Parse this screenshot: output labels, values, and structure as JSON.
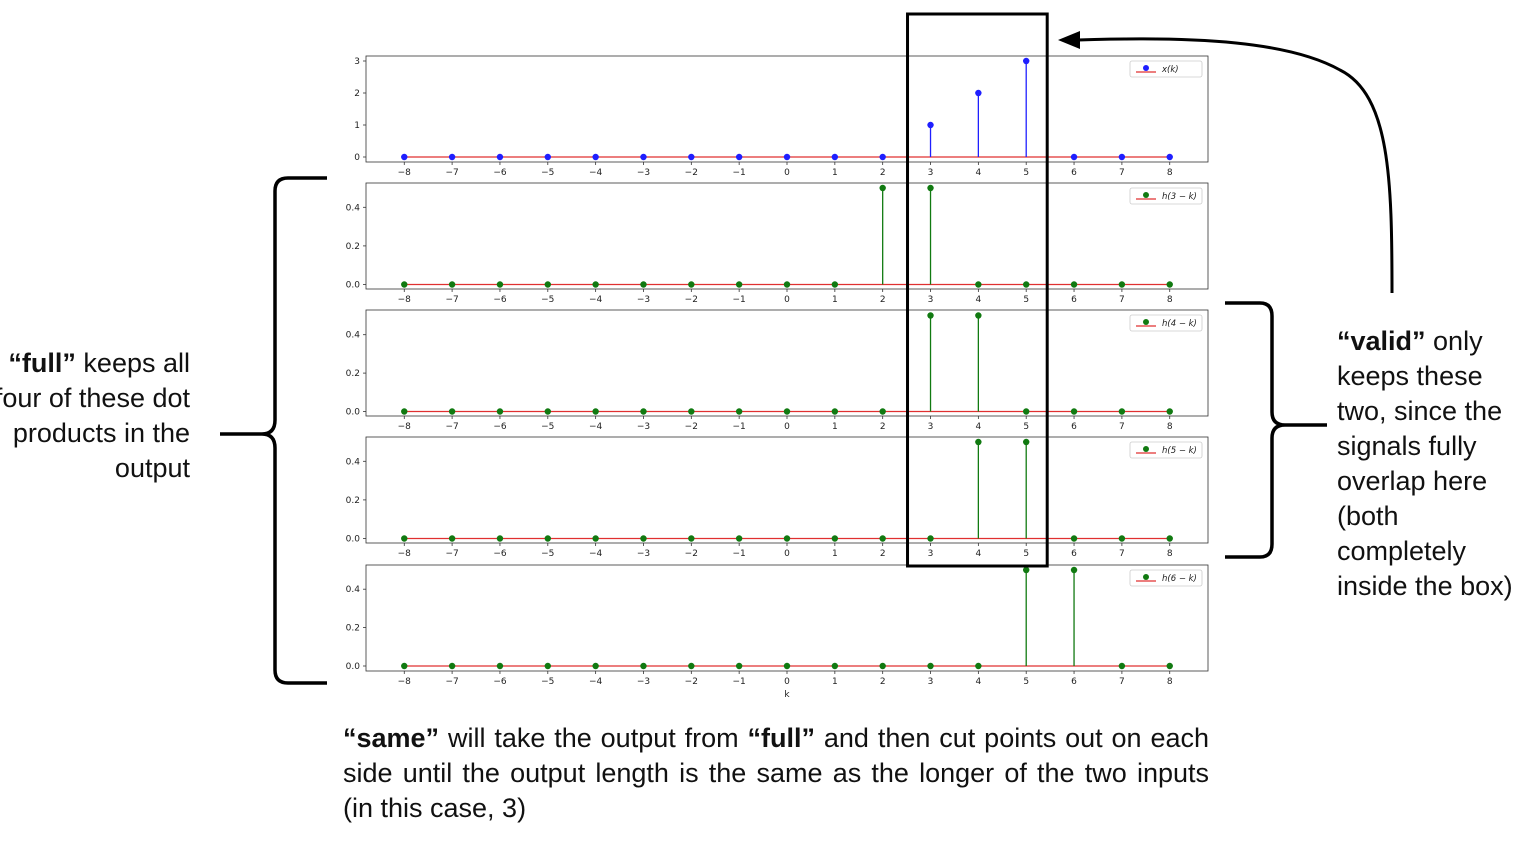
{
  "chart_data": [
    {
      "type": "stem",
      "x": [
        -8,
        -7,
        -6,
        -5,
        -4,
        -3,
        -2,
        -1,
        0,
        1,
        2,
        3,
        4,
        5,
        6,
        7,
        8
      ],
      "y": [
        0,
        0,
        0,
        0,
        0,
        0,
        0,
        0,
        0,
        0,
        0,
        1,
        2,
        3,
        0,
        0,
        0
      ],
      "legend": "x(k)",
      "legend_placement": "top-right",
      "ylim": [
        0,
        3
      ],
      "yticks": [
        "0",
        "1",
        "2",
        "3"
      ],
      "color": "#1f1fff"
    },
    {
      "type": "stem",
      "x": [
        -8,
        -7,
        -6,
        -5,
        -4,
        -3,
        -2,
        -1,
        0,
        1,
        2,
        3,
        4,
        5,
        6,
        7,
        8
      ],
      "y": [
        0,
        0,
        0,
        0,
        0,
        0,
        0,
        0,
        0,
        0,
        0.5,
        0.5,
        0,
        0,
        0,
        0,
        0
      ],
      "legend": "h(3 − k)",
      "legend_placement": "top-right",
      "ylim": [
        0,
        0.5
      ],
      "yticks": [
        "0.0",
        "0.2",
        "0.4"
      ],
      "color": "#117a11"
    },
    {
      "type": "stem",
      "x": [
        -8,
        -7,
        -6,
        -5,
        -4,
        -3,
        -2,
        -1,
        0,
        1,
        2,
        3,
        4,
        5,
        6,
        7,
        8
      ],
      "y": [
        0,
        0,
        0,
        0,
        0,
        0,
        0,
        0,
        0,
        0,
        0,
        0.5,
        0.5,
        0,
        0,
        0,
        0
      ],
      "legend": "h(4 − k)",
      "legend_placement": "top-right",
      "ylim": [
        0,
        0.5
      ],
      "yticks": [
        "0.0",
        "0.2",
        "0.4"
      ],
      "color": "#117a11"
    },
    {
      "type": "stem",
      "x": [
        -8,
        -7,
        -6,
        -5,
        -4,
        -3,
        -2,
        -1,
        0,
        1,
        2,
        3,
        4,
        5,
        6,
        7,
        8
      ],
      "y": [
        0,
        0,
        0,
        0,
        0,
        0,
        0,
        0,
        0,
        0,
        0,
        0,
        0.5,
        0.5,
        0,
        0,
        0
      ],
      "legend": "h(5 − k)",
      "legend_placement": "top-right",
      "ylim": [
        0,
        0.5
      ],
      "yticks": [
        "0.0",
        "0.2",
        "0.4"
      ],
      "color": "#117a11"
    },
    {
      "type": "stem",
      "x": [
        -8,
        -7,
        -6,
        -5,
        -4,
        -3,
        -2,
        -1,
        0,
        1,
        2,
        3,
        4,
        5,
        6,
        7,
        8
      ],
      "y": [
        0,
        0,
        0,
        0,
        0,
        0,
        0,
        0,
        0,
        0,
        0,
        0,
        0,
        0.5,
        0.5,
        0,
        0
      ],
      "legend": "h(6 − k)",
      "legend_placement": "top-right",
      "ylim": [
        0,
        0.5
      ],
      "yticks": [
        "0.0",
        "0.2",
        "0.4"
      ],
      "color": "#117a11",
      "xlabel": "k"
    }
  ],
  "xticks": [
    "−8",
    "−7",
    "−6",
    "−5",
    "−4",
    "−3",
    "−2",
    "−1",
    "0",
    "1",
    "2",
    "3",
    "4",
    "5",
    "6",
    "7",
    "8"
  ],
  "baseline_color": "#e03030",
  "highlight_range": [
    3,
    5
  ],
  "annotations": {
    "full_bold": "“full”",
    "full_rest": " keeps all four of these dot products in the output",
    "valid_bold": "“valid”",
    "valid_rest": " only keeps these two, since the signals fully overlap here (both completely inside the box)",
    "same_bold1": "“same”",
    "same_mid": " will take the output from ",
    "same_bold2": "“full”",
    "same_rest": " and then cut points out on each side until the output length is the same as the longer of the two inputs (in this case, 3)"
  }
}
